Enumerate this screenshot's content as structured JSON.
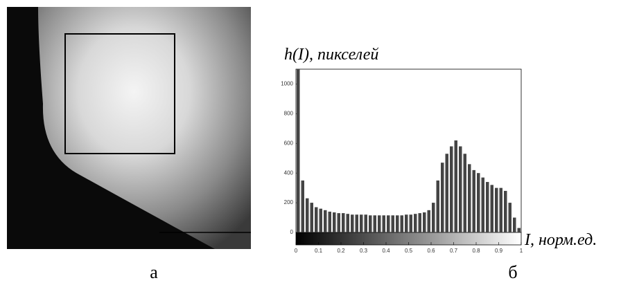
{
  "chart_data": {
    "type": "histogram",
    "y_label": "h(I), пикселей",
    "x_label": "I, норм.ед.",
    "caption_left": "а",
    "caption_right": "б",
    "bins": [
      0,
      0.02,
      0.04,
      0.06,
      0.08,
      0.1,
      0.12,
      0.14,
      0.16,
      0.18,
      0.2,
      0.22,
      0.24,
      0.26,
      0.28,
      0.3,
      0.32,
      0.34,
      0.36,
      0.38,
      0.4,
      0.42,
      0.44,
      0.46,
      0.48,
      0.5,
      0.52,
      0.54,
      0.56,
      0.58,
      0.6,
      0.62,
      0.64,
      0.66,
      0.68,
      0.7,
      0.72,
      0.74,
      0.76,
      0.78,
      0.8,
      0.82,
      0.84,
      0.86,
      0.88,
      0.9,
      0.92,
      0.94,
      0.96,
      0.98,
      1
    ],
    "values": [
      1100,
      350,
      230,
      200,
      170,
      160,
      150,
      140,
      135,
      130,
      130,
      125,
      120,
      120,
      120,
      120,
      115,
      115,
      115,
      115,
      115,
      115,
      115,
      115,
      120,
      120,
      125,
      130,
      135,
      150,
      200,
      350,
      470,
      530,
      580,
      620,
      580,
      530,
      460,
      420,
      400,
      370,
      340,
      320,
      300,
      300,
      280,
      200,
      100,
      30
    ],
    "color": "#444",
    "xlim": [
      0,
      1
    ],
    "xticks": [
      0,
      0.1,
      0.2,
      0.3,
      0.4,
      0.5,
      0.6,
      0.7,
      0.8,
      0.9,
      1
    ],
    "ylim": [
      0,
      1100
    ],
    "yticks": [
      0,
      200,
      400,
      600,
      800,
      1000
    ],
    "grid": false
  }
}
